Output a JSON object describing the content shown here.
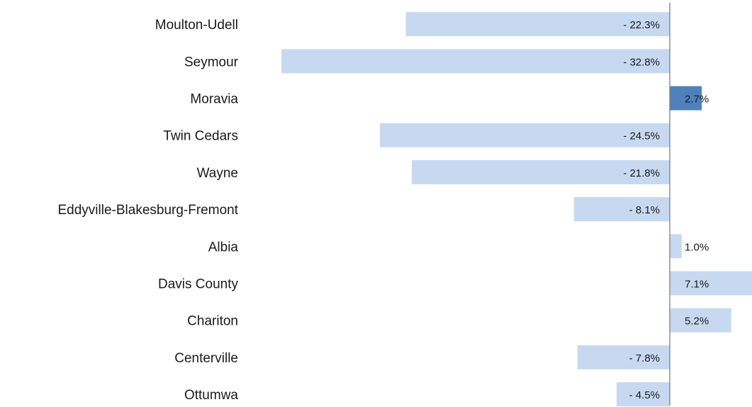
{
  "chart_data": {
    "type": "bar",
    "orientation": "horizontal",
    "categories": [
      "Moulton-Udell",
      "Seymour",
      "Moravia",
      "Twin Cedars",
      "Wayne",
      "Eddyville-Blakesburg-Fremont",
      "Albia",
      "Davis County",
      "Chariton",
      "Centerville",
      "Ottumwa"
    ],
    "values": [
      -22.3,
      -32.8,
      2.7,
      -24.5,
      -21.8,
      -8.1,
      1.0,
      7.1,
      5.2,
      -7.8,
      -4.5
    ],
    "data_labels": [
      "- 22.3%",
      "- 32.8%",
      "2.7%",
      "- 24.5%",
      "- 21.8%",
      "- 8.1%",
      "1.0%",
      "7.1%",
      "5.2%",
      "- 7.8%",
      "- 4.5%"
    ],
    "highlighted": "Moravia",
    "title": "",
    "xlabel": "",
    "ylabel": "",
    "grid": false,
    "legend": "none"
  },
  "colors": {
    "bar": "#c6d9f1",
    "highlight_bar": "#4f81bd",
    "axis": "#808080",
    "text": "#1a1a1a"
  }
}
